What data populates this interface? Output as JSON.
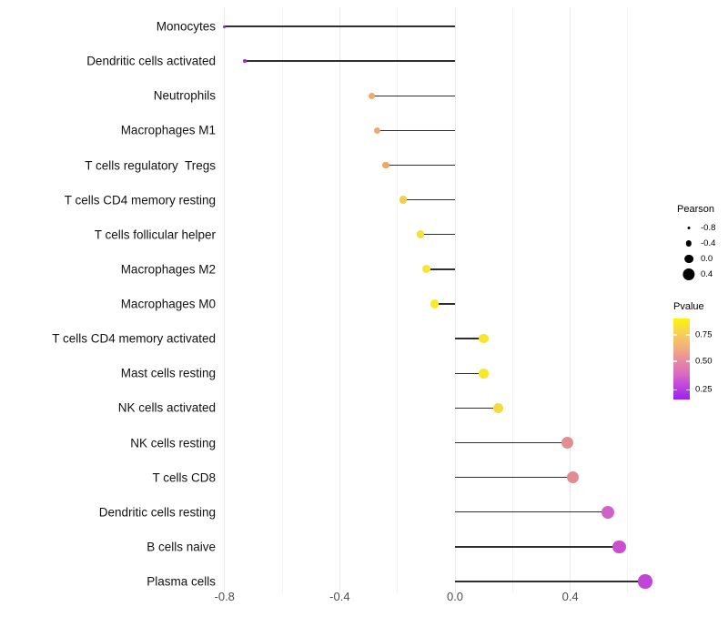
{
  "figure": {
    "background": "#ffffff"
  },
  "chart_data": {
    "type": "lollipop",
    "orientation": "horizontal",
    "title": "",
    "xlabel": "",
    "ylabel": "",
    "baseline": 0.0,
    "xlim": [
      -0.84,
      0.74
    ],
    "x_tick_values": [
      -0.8,
      -0.4,
      0.0,
      0.4
    ],
    "x_tick_labels": [
      "-0.8",
      "-0.4",
      "0.0",
      "0.4"
    ],
    "minor_grid_values": [
      -0.6,
      -0.2,
      0.2,
      0.6
    ],
    "grid": "vertical major+minor, light gray on white",
    "stick_color": "#2f2f2f",
    "rows": [
      {
        "label": "Monocytes",
        "pearson": -0.8,
        "dot_color": "#9128d4"
      },
      {
        "label": "Dendritic cells activated",
        "pearson": -0.73,
        "dot_color": "#a229d3"
      },
      {
        "label": "Neutrophils",
        "pearson": -0.29,
        "dot_color": "#f0ab69"
      },
      {
        "label": "Macrophages M1",
        "pearson": -0.27,
        "dot_color": "#f0a966"
      },
      {
        "label": "T cells regulatory  Tregs",
        "pearson": -0.24,
        "dot_color": "#f0a660"
      },
      {
        "label": "T cells CD4 memory resting",
        "pearson": -0.18,
        "dot_color": "#f2cf4e"
      },
      {
        "label": "T cells follicular helper",
        "pearson": -0.12,
        "dot_color": "#f6e139"
      },
      {
        "label": "Macrophages M2",
        "pearson": -0.1,
        "dot_color": "#f8e72e"
      },
      {
        "label": "Macrophages M0",
        "pearson": -0.07,
        "dot_color": "#fbea25"
      },
      {
        "label": "T cells CD4 memory activated",
        "pearson": 0.1,
        "dot_color": "#f8e52e"
      },
      {
        "label": "Mast cells resting",
        "pearson": 0.1,
        "dot_color": "#f9e729"
      },
      {
        "label": "NK cells activated",
        "pearson": 0.15,
        "dot_color": "#f4da41"
      },
      {
        "label": "NK cells resting",
        "pearson": 0.39,
        "dot_color": "#e28d90"
      },
      {
        "label": "T cells CD8",
        "pearson": 0.41,
        "dot_color": "#e18b92"
      },
      {
        "label": "Dendritic cells resting",
        "pearson": 0.53,
        "dot_color": "#cf62c8"
      },
      {
        "label": "B cells naive",
        "pearson": 0.57,
        "dot_color": "#ca4fce"
      },
      {
        "label": "Plasma cells",
        "pearson": 0.66,
        "dot_color": "#c044d6"
      }
    ],
    "legends": {
      "size": {
        "title": "Pearson",
        "dot_color": "#000000",
        "entries": [
          {
            "label": "-0.8",
            "value": -0.8
          },
          {
            "label": "-0.4",
            "value": -0.4
          },
          {
            "label": "0.0",
            "value": 0.0
          },
          {
            "label": "0.4",
            "value": 0.4
          }
        ]
      },
      "color": {
        "title": "Pvalue",
        "gradient_top_color": "#fdf40a",
        "gradient_bottom_color": "#9a20f3",
        "ticks": [
          {
            "label": "0.75",
            "pos_pct": 20
          },
          {
            "label": "0.50",
            "pos_pct": 53
          },
          {
            "label": "0.25",
            "pos_pct": 88
          }
        ]
      }
    }
  }
}
